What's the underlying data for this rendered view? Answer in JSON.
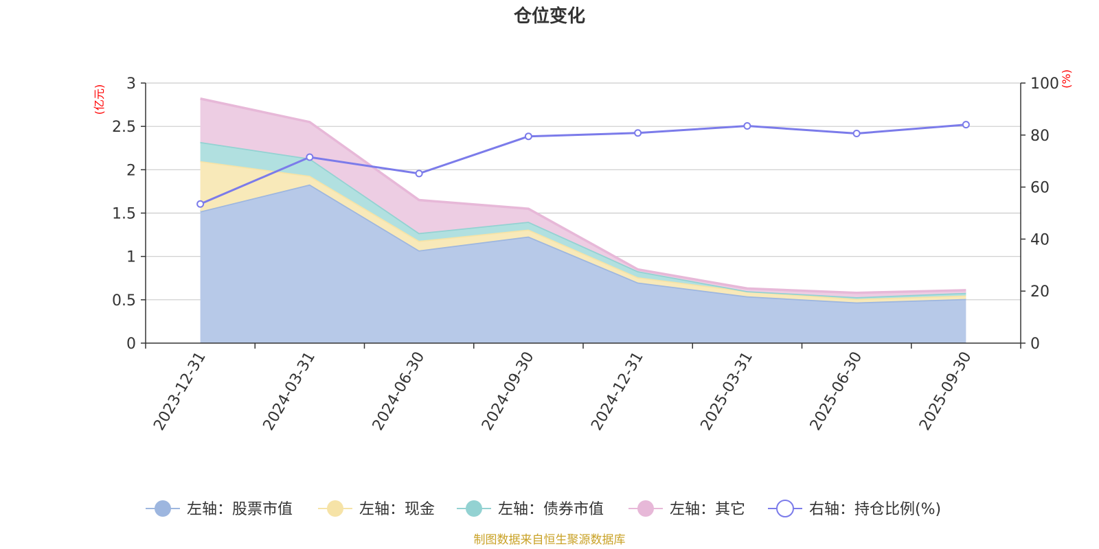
{
  "chart_data": {
    "type": "area",
    "title": "仓位变化",
    "categories": [
      "2023-12-31",
      "2024-03-31",
      "2024-06-30",
      "2024-09-30",
      "2024-12-31",
      "2025-03-31",
      "2025-06-30",
      "2025-09-30"
    ],
    "left_axis": {
      "unit": "(亿元)",
      "ylim": [
        0,
        3
      ],
      "ticks": [
        "0",
        "0.5",
        "1",
        "1.5",
        "2",
        "2.5",
        "3"
      ]
    },
    "right_axis": {
      "unit": "(%)",
      "ylim": [
        0,
        100
      ],
      "ticks": [
        "0",
        "20",
        "40",
        "60",
        "80",
        "100"
      ]
    },
    "series": [
      {
        "name": "左轴：股票市值",
        "axis": "left",
        "stacked": true,
        "values": [
          1.52,
          1.83,
          1.07,
          1.23,
          0.7,
          0.54,
          0.47,
          0.51
        ],
        "fill": "#b7c9e8",
        "stroke": "#9db6df"
      },
      {
        "name": "左轴：现金",
        "axis": "left",
        "stacked": true,
        "values": [
          0.58,
          0.1,
          0.11,
          0.08,
          0.06,
          0.06,
          0.04,
          0.04
        ],
        "fill": "#f8e9b9",
        "stroke": "#f6e3a7"
      },
      {
        "name": "左轴：债券市值",
        "axis": "left",
        "stacked": true,
        "values": [
          0.22,
          0.2,
          0.09,
          0.09,
          0.07,
          0.0,
          0.02,
          0.03
        ],
        "fill": "#b1e0e0",
        "stroke": "#93d2d2"
      },
      {
        "name": "左轴：其它",
        "axis": "left",
        "stacked": true,
        "values": [
          0.5,
          0.42,
          0.38,
          0.15,
          0.02,
          0.03,
          0.05,
          0.03
        ],
        "fill": "#edcde3",
        "stroke": "#e7b8d8"
      },
      {
        "name": "右轴：持仓比例(%)",
        "axis": "right",
        "type": "line",
        "values": [
          53.5,
          71.5,
          65.2,
          79.5,
          80.8,
          83.5,
          80.6,
          84.0
        ],
        "stroke": "#7b7bea"
      }
    ],
    "source_note": "制图数据来自恒生聚源数据库"
  }
}
